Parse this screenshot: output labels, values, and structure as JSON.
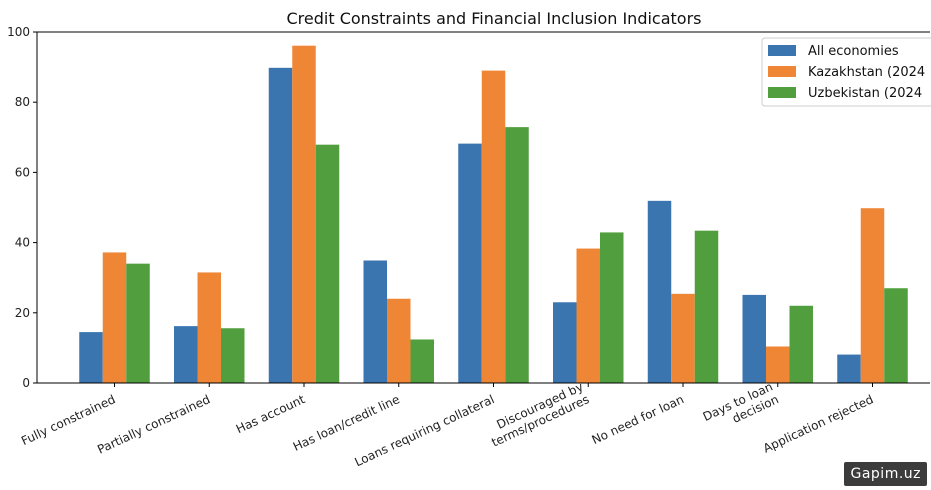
{
  "chart_data": {
    "type": "bar",
    "title": "Credit Constraints and Financial Inclusion Indicators",
    "xlabel": "",
    "ylabel": "",
    "ylim": [
      0,
      100
    ],
    "yticks": [
      0,
      20,
      40,
      60,
      80,
      100
    ],
    "grid": false,
    "legend_position": "top-right",
    "categories": [
      [
        "Fully constrained"
      ],
      [
        "Partially constrained"
      ],
      [
        "Has account"
      ],
      [
        "Has loan/credit line"
      ],
      [
        "Loans requiring collateral"
      ],
      [
        "Discouraged by",
        "terms/procedures"
      ],
      [
        "No need for loan"
      ],
      [
        "Days to loan",
        "decision"
      ],
      [
        "Application rejected"
      ]
    ],
    "series": [
      {
        "name": "All economies",
        "color": "#3a75b0",
        "values": [
          14.5,
          16.2,
          89.8,
          34.9,
          68.2,
          23.0,
          51.9,
          25.1,
          8.1
        ]
      },
      {
        "name": "Kazakhstan (2024",
        "color": "#ef8636",
        "values": [
          37.2,
          31.5,
          96.1,
          24.0,
          89.0,
          38.3,
          25.4,
          10.4,
          49.8
        ]
      },
      {
        "name": "Uzbekistan (2024",
        "color": "#519e3e",
        "values": [
          34.0,
          15.6,
          67.9,
          12.4,
          72.9,
          42.9,
          43.4,
          22.0,
          27.0
        ]
      }
    ]
  },
  "watermark": "Gapim.uz"
}
